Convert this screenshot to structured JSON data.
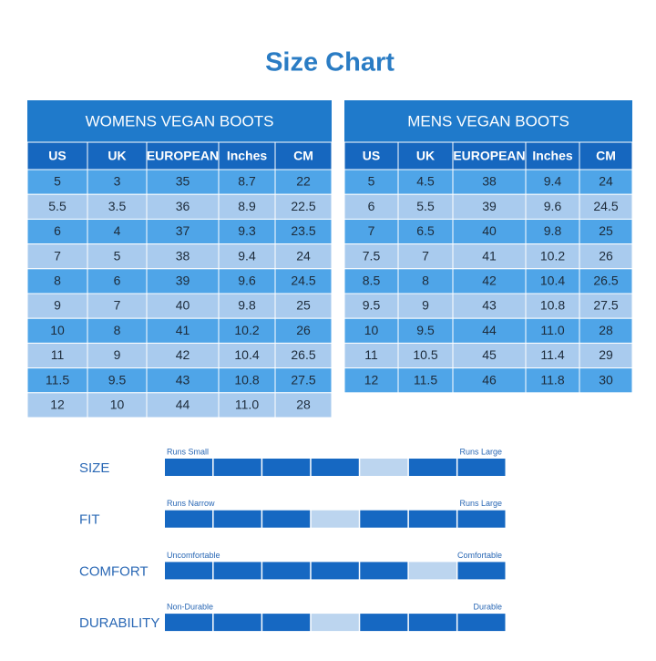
{
  "title": "Size Chart",
  "tables": [
    {
      "title": "WOMENS VEGAN BOOTS",
      "columns": [
        "US",
        "UK",
        "EUROPEAN",
        "Inches",
        "CM"
      ],
      "rows": [
        [
          "5",
          "3",
          "35",
          "8.7",
          "22"
        ],
        [
          "5.5",
          "3.5",
          "36",
          "8.9",
          "22.5"
        ],
        [
          "6",
          "4",
          "37",
          "9.3",
          "23.5"
        ],
        [
          "7",
          "5",
          "38",
          "9.4",
          "24"
        ],
        [
          "8",
          "6",
          "39",
          "9.6",
          "24.5"
        ],
        [
          "9",
          "7",
          "40",
          "9.8",
          "25"
        ],
        [
          "10",
          "8",
          "41",
          "10.2",
          "26"
        ],
        [
          "11",
          "9",
          "42",
          "10.4",
          "26.5"
        ],
        [
          "11.5",
          "9.5",
          "43",
          "10.8",
          "27.5"
        ],
        [
          "12",
          "10",
          "44",
          "11.0",
          "28"
        ]
      ]
    },
    {
      "title": "MENS VEGAN BOOTS",
      "columns": [
        "US",
        "UK",
        "EUROPEAN",
        "Inches",
        "CM"
      ],
      "rows": [
        [
          "5",
          "4.5",
          "38",
          "9.4",
          "24"
        ],
        [
          "6",
          "5.5",
          "39",
          "9.6",
          "24.5"
        ],
        [
          "7",
          "6.5",
          "40",
          "9.8",
          "25"
        ],
        [
          "7.5",
          "7",
          "41",
          "10.2",
          "26"
        ],
        [
          "8.5",
          "8",
          "42",
          "10.4",
          "26.5"
        ],
        [
          "9.5",
          "9",
          "43",
          "10.8",
          "27.5"
        ],
        [
          "10",
          "9.5",
          "44",
          "11.0",
          "28"
        ],
        [
          "11",
          "10.5",
          "45",
          "11.4",
          "29"
        ],
        [
          "12",
          "11.5",
          "46",
          "11.8",
          "30"
        ]
      ]
    }
  ],
  "ratings": [
    {
      "label": "SIZE",
      "low": "Runs Small",
      "high": "Runs Large",
      "position": 4
    },
    {
      "label": "FIT",
      "low": "Runs Narrow",
      "high": "Runs Large",
      "position": 3
    },
    {
      "label": "COMFORT",
      "low": "Uncomfortable",
      "high": "Comfortable",
      "position": 5
    },
    {
      "label": "DURABILITY",
      "low": "Non-Durable",
      "high": "Durable",
      "position": 3
    }
  ]
}
